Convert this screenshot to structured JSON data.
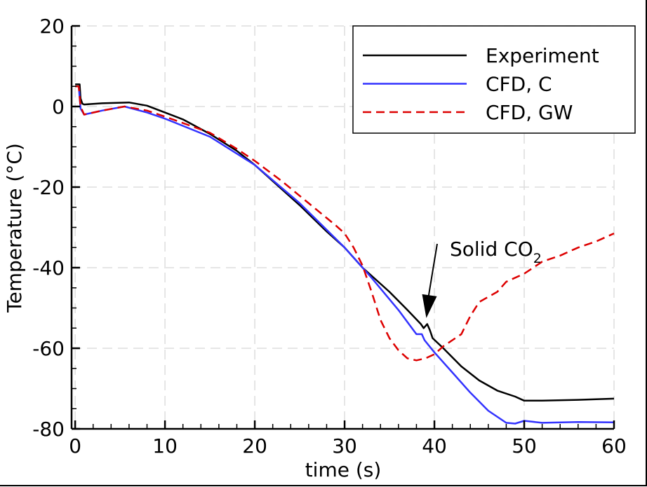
{
  "chart_data": {
    "type": "line",
    "title": "",
    "xlabel": "time (s)",
    "ylabel": "Temperature (°C)",
    "xlim": [
      -0.4,
      60
    ],
    "ylim": [
      -80,
      20
    ],
    "xticks": [
      0,
      10,
      20,
      30,
      40,
      50,
      60
    ],
    "yticks": [
      20,
      0,
      -20,
      -40,
      -60,
      -80
    ],
    "xtick_labels": [
      "0",
      "10",
      "20",
      "30",
      "40",
      "50",
      "60"
    ],
    "ytick_labels": [
      "20",
      "0",
      "-20",
      "-40",
      "-60",
      "-80"
    ],
    "grid": true,
    "legend_position": "top-right",
    "series": [
      {
        "name": "Experiment",
        "color": "#000000",
        "dash": "solid",
        "x": [
          0,
          0.5,
          0.6,
          0.8,
          1,
          3,
          6,
          8,
          10,
          12,
          15,
          18,
          20,
          22,
          25,
          28,
          30,
          32,
          35,
          37,
          38.5,
          38.8,
          39.2,
          39.5,
          39.8,
          41,
          43,
          45,
          47,
          49,
          50,
          52,
          56,
          60
        ],
        "y": [
          5.5,
          5.5,
          2,
          0.7,
          0.5,
          0.8,
          1,
          0.2,
          -1.5,
          -3.2,
          -6.8,
          -11,
          -14.5,
          -18.5,
          -24.5,
          -31,
          -35,
          -40,
          -46,
          -50.5,
          -54,
          -55,
          -54,
          -55.5,
          -57.5,
          -60,
          -64.5,
          -68,
          -70.5,
          -72,
          -73,
          -73,
          -72.8,
          -72.5
        ]
      },
      {
        "name": "CFD, C",
        "color": "#3333ff",
        "dash": "solid",
        "x": [
          0,
          0.4,
          0.6,
          1,
          3,
          5.5,
          8,
          10,
          15,
          20,
          25,
          30,
          33,
          36,
          38,
          38.6,
          38.9,
          40,
          42,
          44,
          46,
          48,
          49,
          50,
          52,
          56,
          60
        ],
        "y": [
          5,
          5,
          -0.5,
          -2,
          -1,
          0,
          -1.5,
          -3,
          -7.5,
          -14.5,
          -24,
          -35,
          -42.5,
          -50.5,
          -56.5,
          -56.5,
          -58,
          -61,
          -66,
          -71,
          -75.5,
          -78.5,
          -78.7,
          -78,
          -78.5,
          -78.3,
          -78.4
        ]
      },
      {
        "name": "CFD, GW",
        "color": "#dd0000",
        "dash": "dashed",
        "x": [
          0,
          0.4,
          0.6,
          1,
          3,
          5.5,
          8,
          10,
          15,
          18,
          20,
          23,
          26,
          29,
          30,
          31,
          32,
          33,
          34,
          35,
          36,
          37,
          38,
          39,
          40,
          41,
          42,
          43,
          44,
          45,
          47,
          48,
          50,
          52,
          54,
          56,
          58,
          60
        ],
        "y": [
          5,
          5,
          0,
          -2,
          -1,
          0,
          -1,
          -2.5,
          -6.5,
          -10.5,
          -13.5,
          -18.5,
          -24,
          -29.5,
          -31.5,
          -35,
          -39.5,
          -46,
          -53,
          -57.5,
          -60.5,
          -62.5,
          -63,
          -62.5,
          -61.5,
          -59.5,
          -58,
          -56.5,
          -52,
          -48.5,
          -46,
          -43.5,
          -41.5,
          -38.5,
          -37,
          -35,
          -33.5,
          -31.5
        ]
      }
    ],
    "annotations": [
      {
        "text": "Solid CO",
        "subscript": "2",
        "arrow_to": [
          39.1,
          -52.5
        ]
      }
    ]
  }
}
